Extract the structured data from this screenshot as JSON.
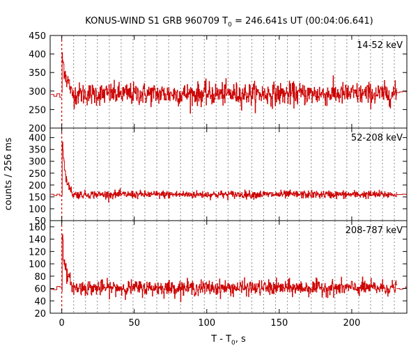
{
  "title": {
    "prefix": "KONUS-WIND S1 GRB 960709 T",
    "sub": "0",
    "suffix": " = 246.641s UT (00:04:06.641)"
  },
  "ylabel": "counts / 256 ms",
  "xlabel": {
    "prefix": "T - T",
    "sub": "0",
    "suffix": ", s"
  },
  "colors": {
    "series": "#cc0000",
    "trigger_line": "#cc0000",
    "grid": "#888888",
    "frame": "#000000"
  },
  "chart_data": [
    {
      "type": "line",
      "panel": "14-52 keV",
      "band_label": "14-52 keV",
      "xlim": [
        -8,
        238
      ],
      "ylim": [
        200,
        450
      ],
      "yticks": [
        200,
        250,
        300,
        350,
        400,
        450
      ],
      "xticks": [
        0,
        50,
        100,
        150,
        200
      ],
      "grid": "vertical dotted every 8.192 s",
      "trigger_marker_x": 0,
      "background_level": 292,
      "background_noise": 15,
      "pre_trigger_level": 290,
      "peak": {
        "x": 0.3,
        "y": 430
      },
      "decay": [
        {
          "x": 0.5,
          "y": 380
        },
        {
          "x": 1.5,
          "y": 365
        },
        {
          "x": 3,
          "y": 335
        },
        {
          "x": 6,
          "y": 310
        }
      ],
      "post_end_level": 298,
      "data_end_x": 231
    },
    {
      "type": "line",
      "panel": "52-208 keV",
      "band_label": "52-208 keV",
      "xlim": [
        -8,
        238
      ],
      "ylim": [
        50,
        440
      ],
      "yticks": [
        50,
        100,
        150,
        200,
        250,
        300,
        350,
        400
      ],
      "xticks": [
        0,
        50,
        100,
        150,
        200
      ],
      "grid": "vertical dotted every 8.192 s",
      "trigger_marker_x": 0,
      "background_level": 160,
      "background_noise": 8,
      "pre_trigger_level": 158,
      "peak": {
        "x": 0.3,
        "y": 410
      },
      "decay": [
        {
          "x": 1,
          "y": 330
        },
        {
          "x": 2,
          "y": 260
        },
        {
          "x": 4,
          "y": 200
        },
        {
          "x": 7,
          "y": 175
        }
      ],
      "post_end_level": 160,
      "data_end_x": 231
    },
    {
      "type": "line",
      "panel": "208-787 keV",
      "band_label": "208-787 keV",
      "xlim": [
        -8,
        238
      ],
      "ylim": [
        20,
        170
      ],
      "yticks": [
        20,
        40,
        60,
        80,
        100,
        120,
        140,
        160
      ],
      "xticks": [
        0,
        50,
        100,
        150,
        200
      ],
      "xticklabels": [
        "0",
        "50",
        "100",
        "150",
        "200"
      ],
      "grid": "vertical dotted every 8.192 s",
      "trigger_marker_x": 0,
      "background_level": 61,
      "background_noise": 6,
      "pre_trigger_level": 60,
      "peak": {
        "x": 0.3,
        "y": 163
      },
      "decay": [
        {
          "x": 1,
          "y": 120
        },
        {
          "x": 2,
          "y": 95
        },
        {
          "x": 4,
          "y": 78
        },
        {
          "x": 7,
          "y": 68
        }
      ],
      "post_end_level": 61,
      "data_end_x": 231
    }
  ]
}
